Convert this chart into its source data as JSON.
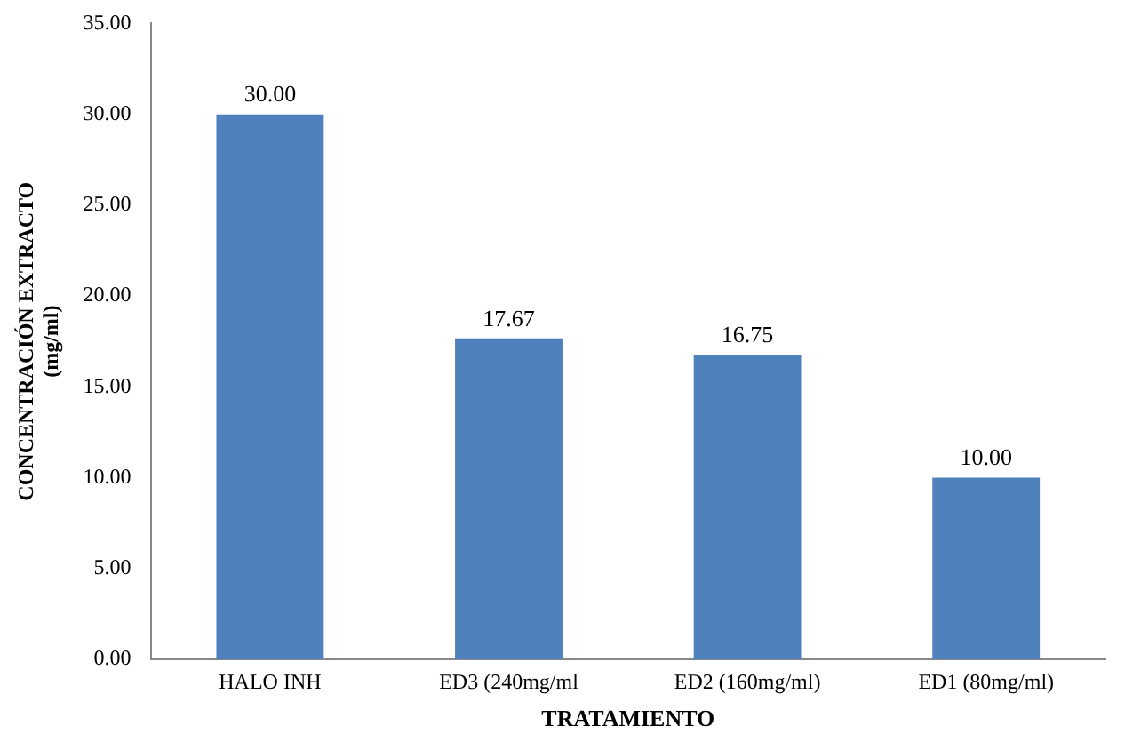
{
  "chart_data": {
    "type": "bar",
    "xlabel": "TRATAMIENTO",
    "ylabel": "CONCENTRACIÓN EXTRACTO (mg/ml)",
    "categories": [
      "HALO INH",
      "ED3 (240mg/ml",
      "ED2 (160mg/ml)",
      "ED1 (80mg/ml)"
    ],
    "values": [
      30.0,
      17.67,
      16.75,
      10.0
    ],
    "color": "#4f81bd",
    "value_labels": [
      "30.00",
      "17.67",
      "16.75",
      "10.00"
    ],
    "ylim": [
      0,
      35
    ],
    "yticks": [
      {
        "value": 0,
        "label": "0.00"
      },
      {
        "value": 5,
        "label": "5.00"
      },
      {
        "value": 10,
        "label": "10.00"
      },
      {
        "value": 15,
        "label": "15.00"
      },
      {
        "value": 20,
        "label": "20.00"
      },
      {
        "value": 25,
        "label": "25.00"
      },
      {
        "value": 30,
        "label": "30.00"
      },
      {
        "value": 35,
        "label": "35.00"
      }
    ],
    "grid": false,
    "legend": false
  }
}
